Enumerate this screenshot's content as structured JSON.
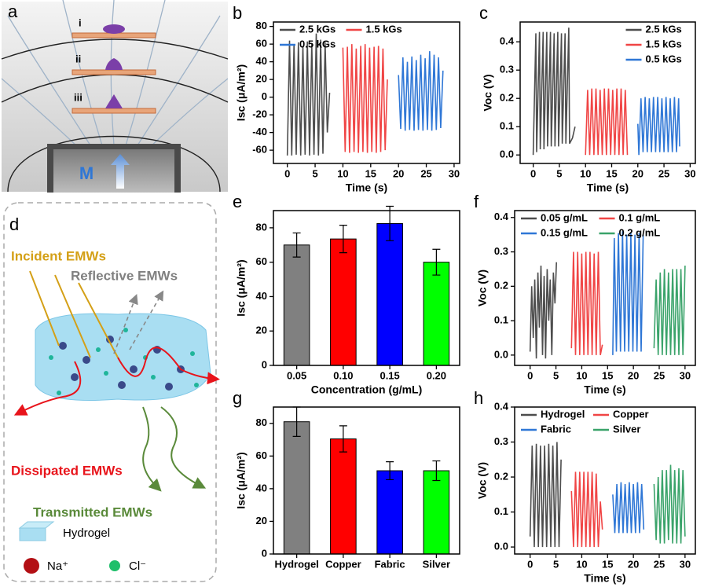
{
  "diagrams": {
    "a": {
      "label": "a",
      "levels": [
        "i",
        "ii",
        "iii"
      ],
      "magnet": "M"
    },
    "d": {
      "label": "d",
      "incident": "Incident EMWs",
      "reflective": "Reflective EMWs",
      "dissipated": "Dissipated EMWs",
      "transmitted": "Transmitted EMWs",
      "hydrogel": "Hydrogel",
      "na": "Na⁺",
      "cl": "Cl⁻"
    }
  },
  "chart_data": [
    {
      "type": "line",
      "label": "b",
      "xlabel": "Time (s)",
      "ylabel": "Isc (μA/m²)",
      "xlim": [
        -2.5,
        31
      ],
      "xticks": [
        0,
        5,
        10,
        15,
        20,
        25,
        30
      ],
      "ylim": [
        -75,
        85
      ],
      "yticks": [
        -60,
        -40,
        -20,
        0,
        20,
        40,
        60,
        80
      ],
      "legend": "upper left",
      "legend_columns": 2,
      "series": [
        {
          "name": "2.5 kGs",
          "color": "#4d4d4d",
          "x": [
            0,
            0.4,
            0.8,
            1.2,
            1.6,
            2.0,
            2.4,
            2.8,
            3.2,
            3.6,
            4.0,
            4.4,
            4.8,
            5.2,
            5.6,
            6.0,
            6.4,
            6.8,
            7.2,
            7.6
          ],
          "values": [
            -66,
            64,
            -66,
            60,
            -65,
            62,
            -66,
            58,
            -65,
            63,
            -66,
            60,
            -65,
            72,
            -66,
            65,
            -64,
            62,
            -40,
            5
          ]
        },
        {
          "name": "1.5 kGs",
          "color": "#f04545",
          "x": [
            10,
            10.4,
            10.8,
            11.2,
            11.6,
            12.0,
            12.4,
            12.8,
            13.2,
            13.6,
            14.0,
            14.4,
            14.8,
            15.2,
            15.6,
            16.0,
            16.4,
            16.8,
            17.2,
            17.6,
            18.0
          ],
          "values": [
            56,
            -62,
            57,
            -63,
            60,
            -62,
            55,
            -63,
            58,
            -62,
            60,
            -63,
            56,
            -62,
            57,
            -63,
            58,
            -62,
            55,
            -60,
            20
          ]
        },
        {
          "name": "0.5 kGs",
          "color": "#2f77d6",
          "x": [
            20,
            20.4,
            20.8,
            21.2,
            21.6,
            22.0,
            22.4,
            22.8,
            23.2,
            23.6,
            24.0,
            24.4,
            24.8,
            25.2,
            25.6,
            26.0,
            26.4,
            26.8,
            27.2,
            27.6,
            28.0
          ],
          "values": [
            25,
            -36,
            45,
            -38,
            40,
            -37,
            46,
            -38,
            42,
            -37,
            48,
            -38,
            44,
            -37,
            52,
            -38,
            48,
            -37,
            45,
            -35,
            30
          ]
        }
      ]
    },
    {
      "type": "line",
      "label": "c",
      "xlabel": "Time (s)",
      "ylabel": "Voc (V)",
      "xlim": [
        -2.5,
        31
      ],
      "xticks": [
        0,
        5,
        10,
        15,
        20,
        25,
        30
      ],
      "ylim": [
        -0.03,
        0.47
      ],
      "yticks": [
        {
          "value": 0,
          "label": "0.0"
        },
        0.1,
        0.2,
        0.3,
        0.4
      ],
      "legend": "upper right",
      "legend_columns": 1,
      "series": [
        {
          "name": "2.5 kGs",
          "color": "#4d4d4d",
          "x": [
            0,
            0.5,
            0.65,
            1.2,
            1.35,
            1.9,
            2.05,
            2.6,
            2.75,
            3.3,
            3.45,
            4.0,
            4.15,
            4.7,
            4.85,
            5.4,
            5.55,
            6.1,
            6.25,
            6.8,
            6.95,
            7.5,
            8.0
          ],
          "values": [
            0,
            0.43,
            0.01,
            0.435,
            0.02,
            0.435,
            0.02,
            0.435,
            0.03,
            0.435,
            0.03,
            0.43,
            0.03,
            0.435,
            0.03,
            0.43,
            0.04,
            0.43,
            0.04,
            0.45,
            0.04,
            0.06,
            0.1
          ]
        },
        {
          "name": "1.5 kGs",
          "color": "#f04545",
          "x": [
            10,
            10.4,
            10.8,
            11.2,
            11.6,
            12.0,
            12.4,
            12.8,
            13.2,
            13.6,
            14.0,
            14.4,
            14.8,
            15.2,
            15.6,
            16.0,
            16.4,
            16.8,
            17.2,
            17.6,
            18.0
          ],
          "values": [
            0,
            0.23,
            0,
            0.235,
            0,
            0.235,
            0,
            0.23,
            0,
            0.235,
            0,
            0.235,
            0,
            0.23,
            0,
            0.235,
            0,
            0.235,
            0,
            0.23,
            0
          ]
        },
        {
          "name": "0.5 kGs",
          "color": "#2f77d6",
          "x": [
            20,
            20.2,
            20.6,
            21.0,
            21.4,
            21.8,
            22.2,
            22.6,
            23.0,
            23.4,
            23.8,
            24.2,
            24.6,
            25.0,
            25.4,
            25.8,
            26.2,
            26.6,
            27.0,
            27.4,
            27.8,
            28.0
          ],
          "values": [
            0.11,
            0,
            0.2,
            0.01,
            0.205,
            0.01,
            0.2,
            0.01,
            0.205,
            0.01,
            0.205,
            0.01,
            0.2,
            0.01,
            0.205,
            0.01,
            0.2,
            0.01,
            0.205,
            0.01,
            0.2,
            0.03
          ]
        }
      ]
    },
    {
      "type": "bar",
      "label": "e",
      "xlabel": "Concentration (g/mL)",
      "ylabel": "Isc (μA/m²)",
      "categories": [
        "0.05",
        "0.10",
        "0.15",
        "0.20"
      ],
      "values": [
        70,
        73.5,
        82.5,
        60
      ],
      "errors": [
        7,
        8,
        10,
        7.5
      ],
      "colors": [
        "#808080",
        "#ff0000",
        "#0000ff",
        "#00ff00"
      ],
      "ylim": [
        0,
        90
      ],
      "yticks": [
        0,
        20,
        40,
        60,
        80
      ]
    },
    {
      "type": "line",
      "label": "f",
      "xlabel": "Time (s)",
      "ylabel": "Voc (V)",
      "xlim": [
        -3,
        32
      ],
      "xticks": [
        0,
        5,
        10,
        15,
        20,
        25,
        30
      ],
      "ylim": [
        -0.03,
        0.42
      ],
      "yticks": [
        {
          "value": 0,
          "label": "0.0"
        },
        0.1,
        0.2,
        0.3,
        0.4
      ],
      "legend": "upper left",
      "legend_columns": 2,
      "series": [
        {
          "name": "0.05 g/mL",
          "color": "#4d4d4d",
          "x": [
            0,
            0.3,
            0.6,
            0.9,
            1.2,
            1.5,
            1.8,
            2.1,
            2.4,
            2.7,
            3.0,
            3.3,
            3.6,
            3.9,
            4.2,
            4.5,
            4.8,
            5.1
          ],
          "values": [
            0.01,
            0.2,
            0.05,
            0.22,
            -0.01,
            0.24,
            0.08,
            0.26,
            0.0,
            0.23,
            -0.01,
            0.25,
            0.1,
            0.22,
            0.0,
            0.24,
            0.15,
            0.27
          ]
        },
        {
          "name": "0.1 g/mL",
          "color": "#f04545",
          "x": [
            8,
            8.4,
            8.8,
            9.2,
            9.6,
            10.0,
            10.4,
            10.8,
            11.2,
            11.6,
            12.0,
            12.4,
            12.8,
            13.2,
            13.6,
            14.0
          ],
          "values": [
            0.02,
            0.3,
            0,
            0.3,
            0,
            0.295,
            0,
            0.3,
            0,
            0.3,
            0,
            0.295,
            0,
            0.3,
            0,
            0.03
          ]
        },
        {
          "name": "0.15 g/mL",
          "color": "#2f77d6",
          "x": [
            16,
            16.3,
            16.7,
            17.1,
            17.5,
            17.9,
            18.3,
            18.7,
            19.1,
            19.5,
            19.9,
            20.3,
            20.7,
            21.1,
            21.5,
            21.9
          ],
          "values": [
            0,
            0.34,
            0.01,
            0.355,
            0.01,
            0.36,
            0.01,
            0.35,
            0.01,
            0.355,
            0.01,
            0.35,
            0.01,
            0.355,
            0.01,
            0.35
          ]
        },
        {
          "name": "0.2 g/mL",
          "color": "#3aa36a",
          "x": [
            24,
            24.4,
            24.8,
            25.2,
            25.6,
            26.0,
            26.4,
            26.8,
            27.2,
            27.6,
            28.0,
            28.4,
            28.8,
            29.2,
            29.6,
            30.0
          ],
          "values": [
            0.02,
            0.22,
            0,
            0.24,
            0,
            0.25,
            0,
            0.24,
            0,
            0.25,
            0,
            0.25,
            0,
            0.25,
            0,
            0.26
          ]
        }
      ]
    },
    {
      "type": "bar",
      "label": "g",
      "ylabel": "Isc (μA/m²)",
      "categories": [
        "Hydrogel",
        "Copper",
        "Fabric",
        "Silver"
      ],
      "values": [
        81,
        70.5,
        51,
        51
      ],
      "errors": [
        9,
        8,
        5.5,
        6
      ],
      "colors": [
        "#808080",
        "#ff0000",
        "#0000ff",
        "#00ff00"
      ],
      "ylim": [
        0,
        90
      ],
      "yticks": [
        0,
        20,
        40,
        60,
        80
      ]
    },
    {
      "type": "line",
      "label": "h",
      "xlabel": "Time (s)",
      "ylabel": "Voc (V)",
      "xlim": [
        -3,
        32
      ],
      "xticks": [
        0,
        5,
        10,
        15,
        20,
        25,
        30
      ],
      "ylim": [
        -0.02,
        0.4
      ],
      "yticks": [
        {
          "value": 0,
          "label": "0.0"
        },
        0.1,
        0.2,
        0.3,
        0.4
      ],
      "legend": "upper left",
      "legend_columns": 2,
      "series": [
        {
          "name": "Hydrogel",
          "color": "#4d4d4d",
          "x": [
            0,
            0.4,
            0.8,
            1.2,
            1.6,
            2.0,
            2.4,
            2.8,
            3.2,
            3.6,
            4.0,
            4.4,
            4.8,
            5.2,
            5.6,
            6.0
          ],
          "values": [
            0.03,
            0.29,
            0,
            0.295,
            0,
            0.29,
            0,
            0.29,
            0,
            0.295,
            0,
            0.29,
            0,
            0.3,
            0,
            0.25
          ]
        },
        {
          "name": "Copper",
          "color": "#f04545",
          "x": [
            8,
            8.4,
            8.8,
            9.2,
            9.6,
            10.0,
            10.4,
            10.8,
            11.2,
            11.6,
            12.0,
            12.4,
            12.8,
            13.2,
            13.6,
            14.0
          ],
          "values": [
            0.16,
            0,
            0.215,
            0,
            0.215,
            0,
            0.215,
            0,
            0.215,
            0,
            0.215,
            0,
            0.21,
            0,
            0.13,
            0.05
          ]
        },
        {
          "name": "Fabric",
          "color": "#2f77d6",
          "x": [
            16,
            16.4,
            16.8,
            17.2,
            17.6,
            18.0,
            18.4,
            18.8,
            19.2,
            19.6,
            20.0,
            20.4,
            20.8,
            21.2,
            21.6,
            22.0
          ],
          "values": [
            0.15,
            0.04,
            0.18,
            0.04,
            0.185,
            0.04,
            0.18,
            0.04,
            0.185,
            0.04,
            0.18,
            0.04,
            0.185,
            0.04,
            0.18,
            0.05
          ]
        },
        {
          "name": "Silver",
          "color": "#3aa36a",
          "x": [
            24,
            24.4,
            24.8,
            25.2,
            25.6,
            26.0,
            26.4,
            26.8,
            27.2,
            27.6,
            28.0,
            28.4,
            28.8,
            29.2,
            29.6,
            30.0
          ],
          "values": [
            0.18,
            0.02,
            0.2,
            0.01,
            0.22,
            0.01,
            0.22,
            0.02,
            0.235,
            0.01,
            0.22,
            0.01,
            0.225,
            0.01,
            0.22,
            0.03
          ]
        }
      ]
    }
  ]
}
